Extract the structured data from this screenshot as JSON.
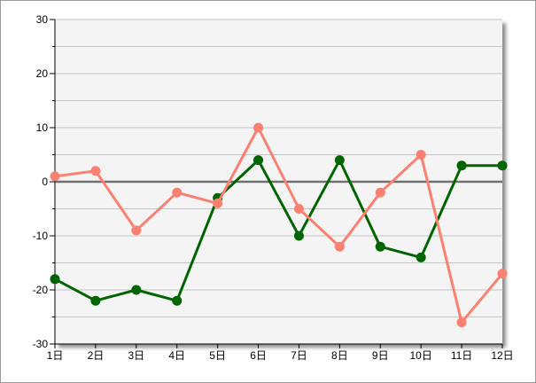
{
  "chart_data": {
    "type": "line",
    "categories": [
      "1日",
      "2日",
      "3日",
      "4日",
      "5日",
      "6日",
      "7日",
      "8日",
      "9日",
      "10日",
      "11日",
      "12日"
    ],
    "series": [
      {
        "color": "#006400",
        "values": [
          -18,
          -22,
          -20,
          -22,
          -3,
          4,
          -10,
          4,
          -12,
          -14,
          3,
          3
        ]
      },
      {
        "color": "#fa8072",
        "values": [
          1,
          2,
          -9,
          -2,
          -4,
          10,
          -5,
          -12,
          -2,
          5,
          -26,
          -17
        ]
      }
    ],
    "ylim": [
      -30,
      30
    ],
    "y_ticks": [
      "30",
      "20",
      "10",
      "0",
      "-10",
      "-20",
      "-30"
    ],
    "grid": true,
    "plot_background": "#f4f4f4",
    "zero_line_color": "#707070"
  }
}
